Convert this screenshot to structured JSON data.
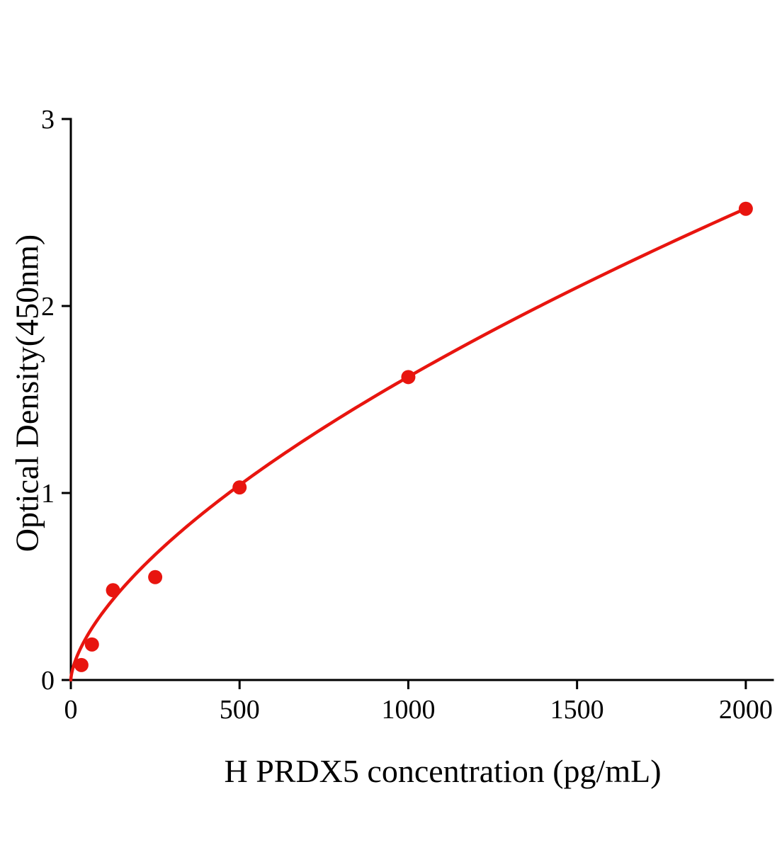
{
  "chart_data": {
    "type": "scatter",
    "title": "",
    "xlabel": "H PRDX5 concentration (pg/mL)",
    "ylabel": "Optical Density(450nm)",
    "x_ticks": [
      0,
      500,
      1000,
      1500,
      2000
    ],
    "y_ticks": [
      0,
      1,
      2,
      3
    ],
    "xlim": [
      0,
      2080
    ],
    "ylim": [
      0,
      3
    ],
    "points": {
      "x": [
        31.25,
        62.5,
        125,
        250,
        500,
        1000,
        2000
      ],
      "y": [
        0.08,
        0.19,
        0.48,
        0.55,
        1.03,
        1.62,
        2.52
      ]
    },
    "fit_curve": {
      "kind": "power",
      "a": 0.0199,
      "b": 0.637,
      "x_start": 0,
      "x_end": 2000
    },
    "legend": "none",
    "grid": "off",
    "colors": {
      "curve": "#e8150f",
      "points": "#e8150f",
      "axis": "#000000",
      "background": "#ffffff"
    }
  }
}
